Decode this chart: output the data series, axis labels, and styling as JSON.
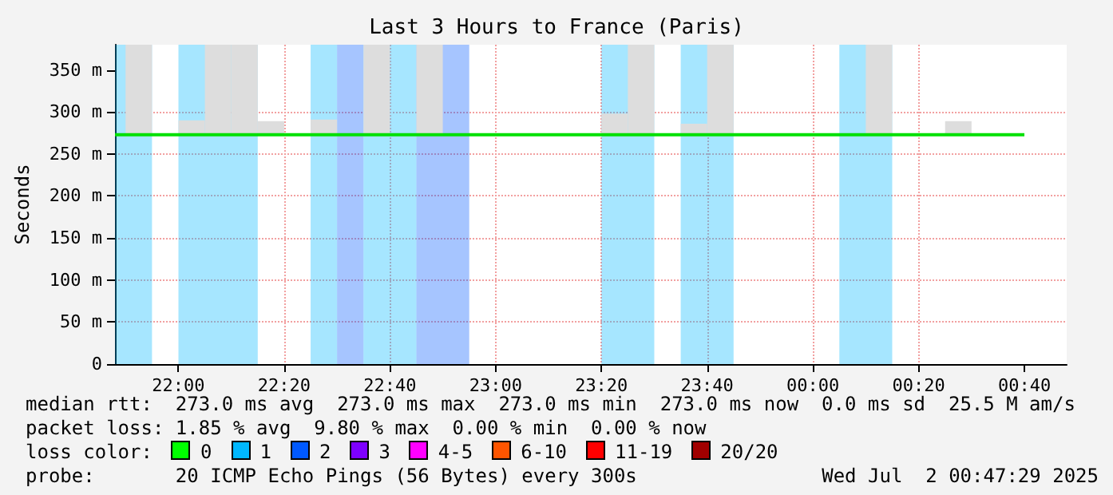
{
  "chart_data": {
    "type": "line",
    "title": "Last 3 Hours to France (Paris)",
    "ylabel": "Seconds",
    "xlim": [
      "2025-07-01T21:48",
      "2025-07-02T00:48"
    ],
    "xticks": [
      {
        "value": "2025-07-01T22:00",
        "label": "22:00"
      },
      {
        "value": "2025-07-01T22:20",
        "label": "22:20"
      },
      {
        "value": "2025-07-01T22:40",
        "label": "22:40"
      },
      {
        "value": "2025-07-01T23:00",
        "label": "23:00"
      },
      {
        "value": "2025-07-01T23:20",
        "label": "23:20"
      },
      {
        "value": "2025-07-01T23:40",
        "label": "23:40"
      },
      {
        "value": "2025-07-02T00:00",
        "label": "00:00"
      },
      {
        "value": "2025-07-02T00:20",
        "label": "00:20"
      },
      {
        "value": "2025-07-02T00:40",
        "label": "00:40"
      }
    ],
    "ylim": [
      0,
      380
    ],
    "yticks": [
      0,
      {
        "value": 50,
        "label": "50 m"
      },
      {
        "value": 100,
        "label": "100 m"
      },
      {
        "value": 150,
        "label": "150 m"
      },
      {
        "value": 200,
        "label": "200 m"
      },
      {
        "value": 250,
        "label": "250 m"
      },
      {
        "value": 300,
        "label": "300 m"
      },
      {
        "value": 350,
        "label": "350 m"
      }
    ],
    "grid": true,
    "series": [
      {
        "type": "bar",
        "color": "#dddddd",
        "x": [
          "2025-07-01T21:52:30",
          "2025-07-01T22:02:30",
          "2025-07-01T22:07:30",
          "2025-07-01T22:12:30",
          "2025-07-01T22:17:30",
          "2025-07-01T22:27:30",
          "2025-07-01T22:37:30",
          "2025-07-01T22:47:30",
          "2025-07-01T22:57:30",
          "2025-07-01T23:22:30",
          "2025-07-01T23:27:30",
          "2025-07-01T23:37:30",
          "2025-07-01T23:42:30",
          "2025-07-01T23:52:30",
          "2025-07-02T00:12:30",
          "2025-07-02T00:27:30"
        ],
        "base": [
          273,
          273,
          273,
          273,
          273,
          273,
          273,
          273,
          null,
          273,
          273,
          273,
          273,
          null,
          273,
          273
        ],
        "values": [
          107,
          17,
          107,
          107,
          16,
          18,
          107,
          107,
          null,
          25,
          107,
          13,
          107,
          null,
          107,
          16
        ]
      },
      {
        "color": "#00e000",
        "x": [
          "2025-07-01T21:48",
          "2025-07-02T00:40"
        ],
        "values": [
          273,
          273
        ]
      }
    ],
    "bands": [
      {
        "axis": "x",
        "from": "2025-07-01T21:48",
        "to": "2025-07-01T21:55",
        "color": "#00b8ff"
      },
      {
        "axis": "x",
        "from": "2025-07-01T22:00",
        "to": "2025-07-01T22:15",
        "color": "#00b8ff"
      },
      {
        "axis": "x",
        "from": "2025-07-01T22:25",
        "to": "2025-07-01T22:30",
        "color": "#00b8ff"
      },
      {
        "axis": "x",
        "from": "2025-07-01T22:30",
        "to": "2025-07-01T22:35",
        "color": "#0059ff"
      },
      {
        "axis": "x",
        "from": "2025-07-01T22:35",
        "to": "2025-07-01T22:45",
        "color": "#00b8ff"
      },
      {
        "axis": "x",
        "from": "2025-07-01T22:45",
        "to": "2025-07-01T22:55",
        "color": "#0059ff"
      },
      {
        "axis": "x",
        "from": "2025-07-01T23:20",
        "to": "2025-07-01T23:30",
        "color": "#00b8ff"
      },
      {
        "axis": "x",
        "from": "2025-07-01T23:35",
        "to": "2025-07-01T23:45",
        "color": "#00b8ff"
      },
      {
        "axis": "x",
        "from": "2025-07-02T00:05",
        "to": "2025-07-02T00:15",
        "color": "#00b8ff"
      }
    ],
    "annotations": [
      "median rtt:  273.0 ms avg  273.0 ms max  273.0 ms min  273.0 ms now  0.0 ms sd  25.5 M am/s",
      "packet loss: 1.85 % avg  9.80 % max  0.00 % min  0.00 % now",
      "loss color:",
      "0",
      "1",
      "2",
      "3",
      "4-5",
      "6-10",
      "11-19",
      "20/20",
      "probe:       20 ICMP Echo Pings (56 Bytes) every 300s",
      "Wed Jul  2 00:47:29 2025"
    ]
  }
}
